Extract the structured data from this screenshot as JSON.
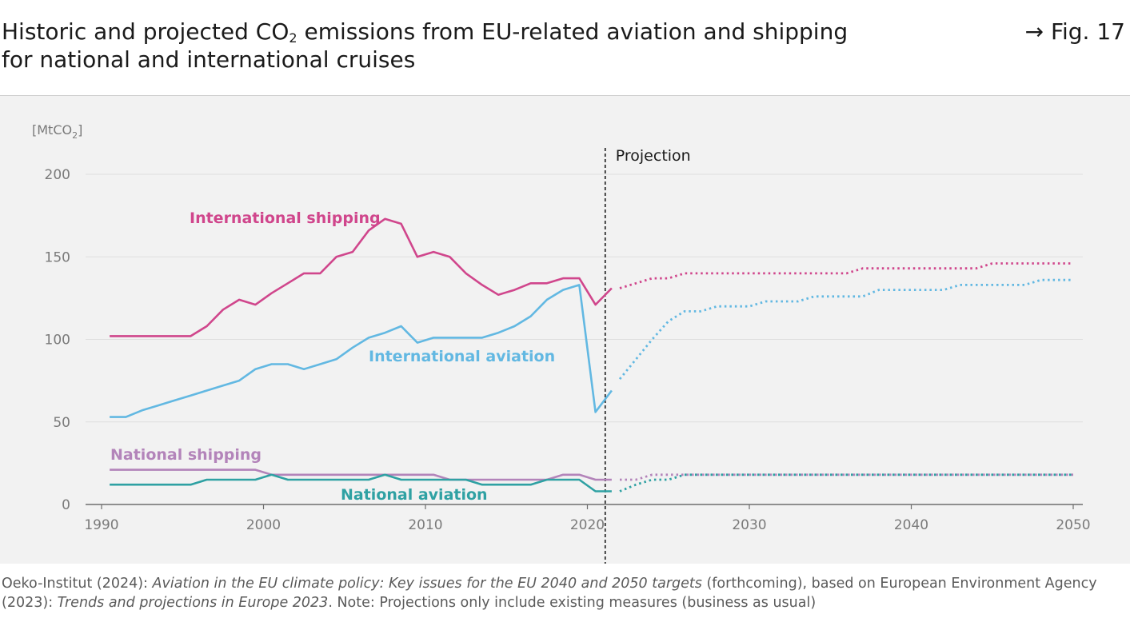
{
  "header": {
    "title_part1": "Historic and projected CO",
    "title_subscript": "2",
    "title_part2": " emissions from EU-related aviation and shipping",
    "title_line2": "for national and international cruises",
    "figure_ref": "→ Fig. 17"
  },
  "source": {
    "part1": "Oeko-Institut (2024): ",
    "part2_italic": "Aviation in the EU climate policy: Key issues for the EU 2040 and 2050 targets",
    "part3": " (forthcoming), based on European Environment Agency (2023): ",
    "part4_italic": "Trends and projections in Europe 2023",
    "part5": ". Note: Projections only include existing measures (business as usual)"
  },
  "chart_data": {
    "type": "line",
    "ylabel": "[MtCO2]",
    "ylabel_main": "[MtCO",
    "ylabel_sub": "2",
    "ylabel_end": "]",
    "xlim": [
      1990,
      2050
    ],
    "ylim": [
      0,
      200
    ],
    "xticks": [
      1990,
      2000,
      2010,
      2020,
      2030,
      2040,
      2050
    ],
    "yticks": [
      0,
      50,
      100,
      150,
      200
    ],
    "grid": "horizontal",
    "projection_start": 2021.1,
    "projection_label": "Projection",
    "series": [
      {
        "name": "International shipping",
        "color": "#d0468c",
        "historic": {
          "x": [
            1990.5,
            1991.5,
            1992.5,
            1993.5,
            1994.5,
            1995.5,
            1996.5,
            1997.5,
            1998.5,
            1999.5,
            2000.5,
            2001.5,
            2002.5,
            2003.5,
            2004.5,
            2005.5,
            2006.5,
            2007.5,
            2008.5,
            2009.5,
            2010.5,
            2011.5,
            2012.5,
            2013.5,
            2014.5,
            2015.5,
            2016.5,
            2017.5,
            2018.5,
            2019.5,
            2020.5,
            2021.5
          ],
          "y": [
            102,
            102,
            102,
            102,
            102,
            102,
            108,
            118,
            124,
            121,
            128,
            134,
            140,
            140,
            150,
            153,
            166,
            173,
            170,
            150,
            153,
            150,
            140,
            133,
            127,
            130,
            134,
            134,
            137,
            137,
            121,
            131
          ]
        },
        "projected": {
          "x": [
            2022,
            2023,
            2024,
            2025,
            2026,
            2027,
            2028,
            2029,
            2030,
            2031,
            2032,
            2033,
            2034,
            2035,
            2036,
            2037,
            2038,
            2039,
            2040,
            2041,
            2042,
            2043,
            2044,
            2045,
            2046,
            2047,
            2048,
            2049,
            2050
          ],
          "y": [
            131,
            134,
            137,
            137,
            140,
            140,
            140,
            140,
            140,
            140,
            140,
            140,
            140,
            140,
            140,
            143,
            143,
            143,
            143,
            143,
            143,
            143,
            143,
            146,
            146,
            146,
            146,
            146,
            146
          ]
        }
      },
      {
        "name": "International aviation",
        "color": "#62b8e2",
        "historic": {
          "x": [
            1990.5,
            1991.5,
            1992.5,
            1993.5,
            1994.5,
            1995.5,
            1996.5,
            1997.5,
            1998.5,
            1999.5,
            2000.5,
            2001.5,
            2002.5,
            2003.5,
            2004.5,
            2005.5,
            2006.5,
            2007.5,
            2008.5,
            2009.5,
            2010.5,
            2011.5,
            2012.5,
            2013.5,
            2014.5,
            2015.5,
            2016.5,
            2017.5,
            2018.5,
            2019.5,
            2020.5,
            2021.5
          ],
          "y": [
            53,
            53,
            57,
            60,
            63,
            66,
            69,
            72,
            75,
            82,
            85,
            85,
            82,
            85,
            88,
            95,
            101,
            104,
            108,
            98,
            101,
            101,
            101,
            101,
            104,
            108,
            114,
            124,
            130,
            133,
            56,
            69
          ]
        },
        "projected": {
          "x": [
            2022,
            2023,
            2024,
            2025,
            2026,
            2027,
            2028,
            2029,
            2030,
            2031,
            2032,
            2033,
            2034,
            2035,
            2036,
            2037,
            2038,
            2039,
            2040,
            2041,
            2042,
            2043,
            2044,
            2045,
            2046,
            2047,
            2048,
            2049,
            2050
          ],
          "y": [
            76,
            88,
            100,
            111,
            117,
            117,
            120,
            120,
            120,
            123,
            123,
            123,
            126,
            126,
            126,
            126,
            130,
            130,
            130,
            130,
            130,
            133,
            133,
            133,
            133,
            133,
            136,
            136,
            136
          ]
        }
      },
      {
        "name": "National shipping",
        "color": "#b384ba",
        "historic": {
          "x": [
            1990.5,
            1995.5,
            1999.5,
            2000.5,
            2010.5,
            2011.5,
            2017.5,
            2018.5,
            2019.5,
            2020.5,
            2021.5
          ],
          "y": [
            21,
            21,
            21,
            18,
            18,
            15,
            15,
            18,
            18,
            15,
            15
          ]
        },
        "projected": {
          "x": [
            2022,
            2023,
            2024,
            2025,
            2026,
            2030,
            2040,
            2050
          ],
          "y": [
            15,
            15,
            18,
            18,
            18,
            18,
            18,
            18
          ]
        }
      },
      {
        "name": "National aviation",
        "color": "#2fa1a3",
        "historic": {
          "x": [
            1990.5,
            1995.5,
            1996.5,
            1999.5,
            2000.5,
            2001.5,
            2006.5,
            2007.5,
            2008.5,
            2012.5,
            2013.5,
            2016.5,
            2017.5,
            2019.5,
            2020.5,
            2021.5
          ],
          "y": [
            12,
            12,
            15,
            15,
            18,
            15,
            15,
            18,
            15,
            15,
            12,
            12,
            15,
            15,
            8,
            8
          ]
        },
        "projected": {
          "x": [
            2022,
            2023,
            2024,
            2025,
            2026,
            2030,
            2040,
            2050
          ],
          "y": [
            8,
            12,
            15,
            15,
            18,
            18,
            18,
            18
          ]
        }
      }
    ]
  }
}
